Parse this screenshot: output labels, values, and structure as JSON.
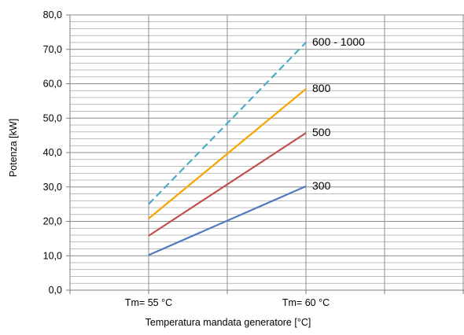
{
  "chart_data": {
    "type": "line",
    "title": "",
    "xlabel": "Temperatura mandata generatore [°C]",
    "ylabel": "Potenza [kW]",
    "categories": [
      "Tm= 55 °C",
      "Tm= 60 °C"
    ],
    "ylim": [
      0,
      80
    ],
    "y_major_ticks": [
      "0,0",
      "10,0",
      "20,0",
      "30,0",
      "40,0",
      "50,0",
      "60,0",
      "70,0",
      "80,0"
    ],
    "y_minor_step": 2,
    "grid": true,
    "legend": "none (labels at line ends)",
    "series": [
      {
        "name": "300",
        "color": "#4f7bbd",
        "values": [
          10.2,
          30.2
        ],
        "dashed": false
      },
      {
        "name": "500",
        "color": "#c0504d",
        "values": [
          15.8,
          45.7
        ],
        "dashed": false
      },
      {
        "name": "800",
        "color": "#f7a400",
        "values": [
          20.8,
          58.5
        ],
        "dashed": false
      },
      {
        "name": "600 - 1000",
        "color": "#4bacc6",
        "values": [
          25.0,
          72.0
        ],
        "dashed": true
      }
    ]
  }
}
